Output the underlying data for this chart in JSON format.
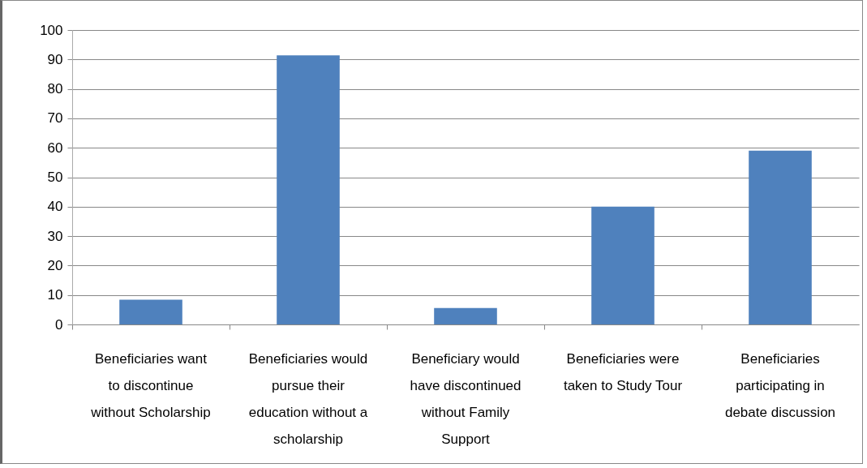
{
  "chart_data": {
    "type": "bar",
    "categories": [
      "Beneficiaries want to discontinue without Scholarship",
      "Beneficiaries would pursue their education without a scholarship",
      "Beneficiary would have discontinued without Family Support",
      "Beneficiaries were taken to Study Tour",
      "Beneficiaries participating in debate discussion"
    ],
    "values": [
      8.4,
      91.4,
      5.6,
      40,
      59
    ],
    "color": "#4f81bd",
    "ylim": [
      0,
      100
    ],
    "yticks": [
      0,
      10,
      20,
      30,
      40,
      50,
      60,
      70,
      80,
      90,
      100
    ],
    "grid": "y"
  }
}
